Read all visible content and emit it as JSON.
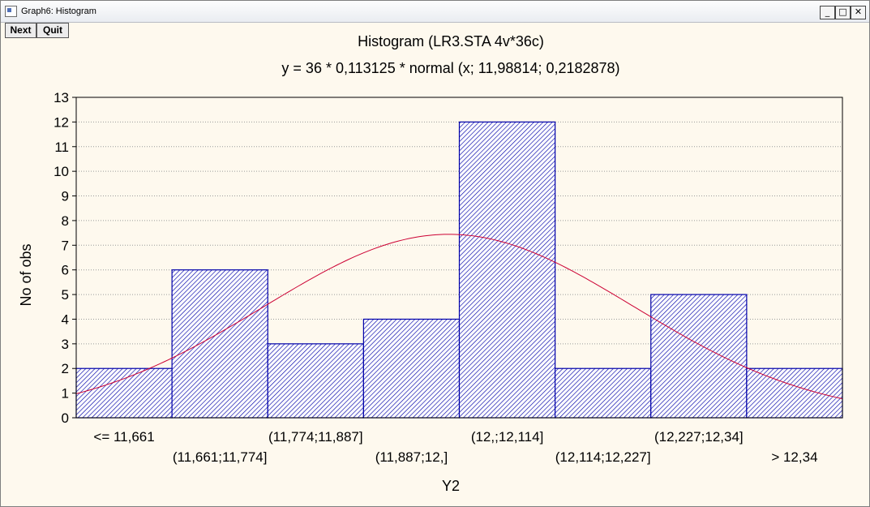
{
  "window": {
    "title": "Graph6: Histogram",
    "minimize_glyph": "_",
    "maximize_glyph": "□",
    "close_glyph": "✕"
  },
  "toolbar": {
    "next_label": "Next",
    "quit_label": "Quit"
  },
  "chart_data": {
    "type": "bar",
    "title": "Histogram (LR3.STA 4v*36c)",
    "subtitle": "y = 36 * 0,113125 * normal (x; 11,98814; 0,2182878)",
    "xlabel": "Y2",
    "ylabel": "No of obs",
    "ylim": [
      0,
      13
    ],
    "yticks": [
      0,
      1,
      2,
      3,
      4,
      5,
      6,
      7,
      8,
      9,
      10,
      11,
      12,
      13
    ],
    "grid": true,
    "categories": [
      "<= 11,661",
      "(11,661;11,774]",
      "(11,774;11,887]",
      "(11,887;12,]",
      "(12,;12,114]",
      "(12,114;12,227]",
      "(12,227;12,34]",
      "> 12,34"
    ],
    "values": [
      2,
      6,
      3,
      4,
      12,
      2,
      5,
      2
    ],
    "fit_curve": {
      "n": 36,
      "bin_width": 0.113125,
      "mean": 11.98814,
      "sd": 0.2182878,
      "x_start": 11.548,
      "color": "#cc0033"
    },
    "bar_color": "#0000aa",
    "bar_fill": "#ffffff"
  }
}
